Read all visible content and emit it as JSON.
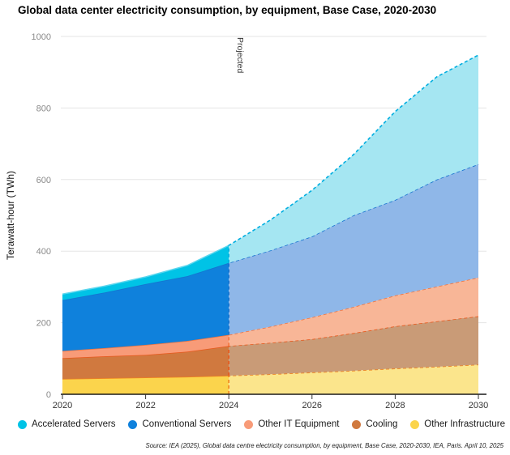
{
  "title": "Global data center electricity consumption, by equipment, Base Case, 2020-2030",
  "source": "Source: IEA (2025), Global data centre electricity consumption, by equipment, Base Case, 2020-2030, IEA, Paris. April 10, 2025",
  "projected_label": "Projected",
  "legend": {
    "items": [
      {
        "label": "Accelerated Servers",
        "color": "#00C3E6"
      },
      {
        "label": "Conventional Servers",
        "color": "#0F81DC"
      },
      {
        "label": "Other IT Equipment",
        "color": "#F89B78"
      },
      {
        "label": "Cooling",
        "color": "#D0793F"
      },
      {
        "label": "Other Infrastructure",
        "color": "#FBD44C"
      }
    ]
  },
  "chart_data": {
    "type": "area",
    "stacked": true,
    "title": "Global data center electricity consumption, by equipment, Base Case, 2020-2030",
    "xlabel": "",
    "ylabel": "Terawatt-hour (TWh)",
    "x": [
      2020,
      2021,
      2022,
      2023,
      2024,
      2025,
      2026,
      2027,
      2028,
      2029,
      2030
    ],
    "xticks": [
      2020,
      2022,
      2024,
      2026,
      2028,
      2030
    ],
    "ylim": [
      0,
      1000
    ],
    "yticks": [
      0,
      200,
      400,
      600,
      800,
      1000
    ],
    "grid": true,
    "legend_position": "bottom",
    "projected_from": 2024,
    "units": "TWh",
    "series": [
      {
        "name": "Other Infrastructure",
        "key": "other-infrastructure",
        "values": [
          43,
          45,
          47,
          49,
          52,
          56,
          61,
          66,
          72,
          77,
          83
        ],
        "fill": "#FBD44C",
        "fill_projected": "#FBE58C",
        "stroke": "#F0821E"
      },
      {
        "name": "Cooling",
        "key": "cooling",
        "values": [
          58,
          61,
          63,
          70,
          83,
          88,
          93,
          105,
          118,
          127,
          135
        ],
        "fill": "#D0793F",
        "fill_projected": "#C99B77",
        "stroke": "#E8581C"
      },
      {
        "name": "Other IT Equipment",
        "key": "other-it-equipment",
        "values": [
          20,
          23,
          28,
          30,
          31,
          45,
          61,
          73,
          86,
          97,
          108
        ],
        "fill": "#F89B78",
        "fill_projected": "#F8B697",
        "stroke": "#F4743C"
      },
      {
        "name": "Conventional Servers",
        "key": "conventional-servers",
        "values": [
          142,
          155,
          170,
          181,
          201,
          213,
          226,
          256,
          267,
          299,
          317
        ],
        "fill": "#0F81DC",
        "fill_projected": "#8FB7E8",
        "stroke": "#1573CE"
      },
      {
        "name": "Accelerated Servers",
        "key": "accelerated-servers",
        "values": [
          17,
          18,
          20,
          30,
          49,
          85,
          129,
          170,
          247,
          287,
          305
        ],
        "fill": "#00C3E6",
        "fill_projected": "#A5E6F2",
        "stroke": "#00AEE0",
        "stroke_solid": "#5BD6EE"
      }
    ]
  }
}
